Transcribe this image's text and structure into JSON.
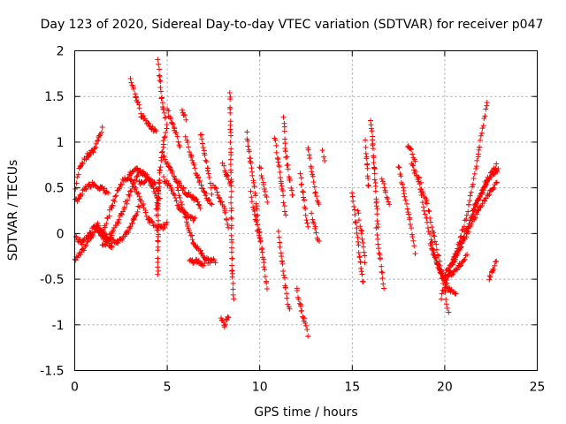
{
  "chart_data": {
    "type": "scatter",
    "title": "Day 123 of 2020, Sidereal Day-to-day VTEC variation (SDTVAR) for receiver p047",
    "xlabel": "GPS time / hours",
    "ylabel": "SDTVAR / TECUs",
    "xlim": [
      0,
      25
    ],
    "ylim": [
      -1.5,
      2
    ],
    "xticks": [
      0,
      5,
      10,
      15,
      20,
      25
    ],
    "yticks": [
      -1.5,
      -1,
      -0.5,
      0,
      0.5,
      1,
      1.5,
      2
    ],
    "xtick_labels": [
      "0",
      "5",
      "10",
      "15",
      "20",
      "25"
    ],
    "ytick_labels": [
      "-1.5",
      "-1",
      "-0.5",
      "0",
      "0.5",
      "1",
      "1.5",
      "2"
    ],
    "grid": true,
    "marker": "+",
    "color": "#ff0000",
    "tracks": [
      {
        "x": [
          0.0,
          0.3,
          0.7,
          1.0,
          1.3,
          1.5
        ],
        "y": [
          0.45,
          0.75,
          0.85,
          0.9,
          1.05,
          1.15
        ]
      },
      {
        "x": [
          0.0,
          0.3,
          0.6,
          1.0,
          1.4,
          1.8
        ],
        "y": [
          0.35,
          0.4,
          0.5,
          0.55,
          0.5,
          0.45
        ]
      },
      {
        "x": [
          0.0,
          0.4,
          0.8,
          1.2,
          1.6,
          2.0
        ],
        "y": [
          -0.3,
          -0.2,
          -0.05,
          0.05,
          -0.05,
          -0.15
        ]
      },
      {
        "x": [
          0.0,
          0.4,
          0.8,
          1.2,
          1.6,
          2.0
        ],
        "y": [
          -0.05,
          -0.1,
          0.0,
          0.1,
          0.0,
          -0.15
        ]
      },
      {
        "x": [
          1.2,
          1.8,
          2.3,
          2.8,
          3.2,
          3.5
        ],
        "y": [
          0.05,
          -0.05,
          -0.1,
          0.0,
          0.15,
          0.3
        ]
      },
      {
        "x": [
          1.5,
          2.0,
          2.5,
          3.0,
          3.5,
          4.0,
          4.5
        ],
        "y": [
          -0.15,
          0.0,
          0.2,
          0.45,
          0.7,
          0.6,
          0.35
        ]
      },
      {
        "x": [
          1.5,
          2.0,
          2.5,
          3.0,
          3.4,
          3.8
        ],
        "y": [
          0.0,
          0.3,
          0.55,
          0.65,
          0.7,
          0.65
        ]
      },
      {
        "x": [
          3.0,
          3.3,
          3.6,
          4.0,
          4.4
        ],
        "y": [
          1.7,
          1.5,
          1.3,
          1.2,
          1.1
        ]
      },
      {
        "x": [
          3.0,
          3.5,
          4.0,
          4.5,
          5.0
        ],
        "y": [
          0.6,
          0.4,
          0.15,
          0.05,
          0.1
        ]
      },
      {
        "x": [
          3.5,
          3.9,
          4.3,
          4.6
        ],
        "y": [
          0.55,
          0.6,
          0.55,
          0.4
        ]
      },
      {
        "x": [
          4.5,
          4.6,
          4.7,
          4.8,
          4.9
        ],
        "y": [
          1.9,
          1.7,
          1.5,
          1.35,
          1.25
        ]
      },
      {
        "x": [
          4.4,
          4.6,
          4.8,
          5.0
        ],
        "y": [
          0.2,
          0.7,
          1.0,
          1.2
        ]
      },
      {
        "x": [
          4.5,
          4.5,
          4.5,
          4.6
        ],
        "y": [
          -0.45,
          -0.1,
          0.3,
          0.6
        ]
      },
      {
        "x": [
          4.8,
          5.2,
          5.6,
          6.0,
          6.5
        ],
        "y": [
          0.6,
          0.5,
          0.3,
          0.2,
          0.15
        ]
      },
      {
        "x": [
          4.8,
          5.2,
          5.6,
          6.0,
          6.4,
          6.8
        ],
        "y": [
          0.85,
          0.7,
          0.55,
          0.45,
          0.4,
          0.3
        ]
      },
      {
        "x": [
          5.0,
          5.4,
          5.7
        ],
        "y": [
          1.35,
          1.15,
          0.95
        ]
      },
      {
        "x": [
          5.8,
          5.9,
          6.0
        ],
        "y": [
          1.35,
          1.3,
          1.25
        ]
      },
      {
        "x": [
          5.5,
          5.8,
          6.1,
          6.4,
          6.8,
          7.2,
          7.6
        ],
        "y": [
          0.55,
          0.3,
          0.1,
          -0.1,
          -0.2,
          -0.3,
          -0.3
        ]
      },
      {
        "x": [
          6.0,
          6.3,
          6.6,
          7.0,
          7.4
        ],
        "y": [
          1.05,
          0.85,
          0.65,
          0.45,
          0.3
        ]
      },
      {
        "x": [
          6.2,
          6.6,
          7.0
        ],
        "y": [
          -0.3,
          -0.3,
          -0.35
        ]
      },
      {
        "x": [
          6.8,
          7.0,
          7.2,
          7.4
        ],
        "y": [
          1.1,
          0.9,
          0.7,
          0.45
        ]
      },
      {
        "x": [
          7.5,
          7.8,
          8.1,
          8.3
        ],
        "y": [
          0.55,
          0.4,
          0.25,
          0.05
        ]
      },
      {
        "x": [
          8.0,
          8.2,
          8.4
        ],
        "y": [
          0.75,
          0.65,
          0.55
        ]
      },
      {
        "x": [
          7.9,
          8.1,
          8.3
        ],
        "y": [
          -0.95,
          -1.0,
          -0.9
        ]
      },
      {
        "x": [
          8.4,
          8.5,
          8.6
        ],
        "y": [
          1.55,
          -0.4,
          -0.7
        ]
      },
      {
        "x": [
          9.3,
          9.5,
          9.7,
          9.9
        ],
        "y": [
          1.1,
          0.8,
          0.5,
          0.2
        ]
      },
      {
        "x": [
          9.5,
          9.7,
          9.9,
          10.1
        ],
        "y": [
          0.45,
          0.25,
          0.05,
          -0.15
        ]
      },
      {
        "x": [
          9.8,
          10.0,
          10.2,
          10.4
        ],
        "y": [
          0.2,
          0.0,
          -0.3,
          -0.6
        ]
      },
      {
        "x": [
          10.0,
          10.2,
          10.4
        ],
        "y": [
          0.75,
          0.55,
          0.35
        ]
      },
      {
        "x": [
          10.8,
          11.0,
          11.2,
          11.4
        ],
        "y": [
          1.05,
          0.8,
          0.5,
          0.2
        ]
      },
      {
        "x": [
          11.0,
          11.2,
          11.4,
          11.6
        ],
        "y": [
          0.0,
          -0.3,
          -0.6,
          -0.85
        ]
      },
      {
        "x": [
          11.3,
          11.4,
          11.6,
          11.8
        ],
        "y": [
          1.25,
          0.9,
          0.6,
          0.4
        ]
      },
      {
        "x": [
          12.0,
          12.2,
          12.4,
          12.6
        ],
        "y": [
          -0.6,
          -0.8,
          -0.95,
          -1.1
        ]
      },
      {
        "x": [
          12.2,
          12.4,
          12.6
        ],
        "y": [
          0.65,
          0.35,
          0.05
        ]
      },
      {
        "x": [
          12.6,
          12.8,
          13.0,
          13.2
        ],
        "y": [
          0.95,
          0.7,
          0.45,
          0.3
        ]
      },
      {
        "x": [
          12.8,
          13.0,
          13.2
        ],
        "y": [
          0.2,
          0.05,
          -0.1
        ]
      },
      {
        "x": [
          13.4,
          13.5
        ],
        "y": [
          0.9,
          0.8
        ]
      },
      {
        "x": [
          15.0,
          15.2,
          15.4,
          15.6
        ],
        "y": [
          0.45,
          0.1,
          -0.25,
          -0.55
        ]
      },
      {
        "x": [
          15.3,
          15.5,
          15.7
        ],
        "y": [
          0.25,
          0.0,
          -0.3
        ]
      },
      {
        "x": [
          15.7,
          15.8,
          15.9
        ],
        "y": [
          1.0,
          0.75,
          0.5
        ]
      },
      {
        "x": [
          16.0,
          16.1,
          16.2,
          16.3,
          16.4
        ],
        "y": [
          1.25,
          1.0,
          0.7,
          0.35,
          0.05
        ]
      },
      {
        "x": [
          16.3,
          16.5,
          16.7
        ],
        "y": [
          0.05,
          -0.25,
          -0.6
        ]
      },
      {
        "x": [
          16.6,
          16.8,
          17.0
        ],
        "y": [
          0.6,
          0.45,
          0.3
        ]
      },
      {
        "x": [
          17.5,
          17.8,
          18.1,
          18.4
        ],
        "y": [
          0.75,
          0.45,
          0.15,
          -0.2
        ]
      },
      {
        "x": [
          18.0,
          18.2,
          18.4
        ],
        "y": [
          0.95,
          0.9,
          0.8
        ]
      },
      {
        "x": [
          18.2,
          18.6,
          19.0,
          19.4,
          19.8,
          20.2
        ],
        "y": [
          0.75,
          0.6,
          0.35,
          0.0,
          -0.4,
          -0.85
        ]
      },
      {
        "x": [
          18.6,
          19.0,
          19.4,
          19.8,
          20.2,
          20.6
        ],
        "y": [
          0.55,
          0.15,
          -0.2,
          -0.45,
          -0.6,
          -0.65
        ]
      },
      {
        "x": [
          19.2,
          19.6,
          20.0,
          20.4,
          20.8,
          21.2
        ],
        "y": [
          -0.1,
          -0.35,
          -0.5,
          -0.45,
          -0.35,
          -0.25
        ]
      },
      {
        "x": [
          19.8,
          20.3,
          20.8,
          21.3,
          21.8,
          22.3
        ],
        "y": [
          -0.7,
          -0.4,
          -0.1,
          0.3,
          0.85,
          1.45
        ]
      },
      {
        "x": [
          20.0,
          20.6,
          21.2,
          21.8,
          22.4,
          22.8
        ],
        "y": [
          -0.45,
          -0.25,
          0.0,
          0.25,
          0.45,
          0.55
        ]
      },
      {
        "x": [
          20.4,
          21.0,
          21.6,
          22.2,
          22.8
        ],
        "y": [
          -0.35,
          -0.05,
          0.25,
          0.55,
          0.75
        ]
      },
      {
        "x": [
          21.5,
          22.0,
          22.5,
          22.9
        ],
        "y": [
          0.25,
          0.45,
          0.65,
          0.7
        ]
      },
      {
        "x": [
          22.4,
          22.6,
          22.8
        ],
        "y": [
          -0.5,
          -0.4,
          -0.3
        ]
      }
    ]
  }
}
